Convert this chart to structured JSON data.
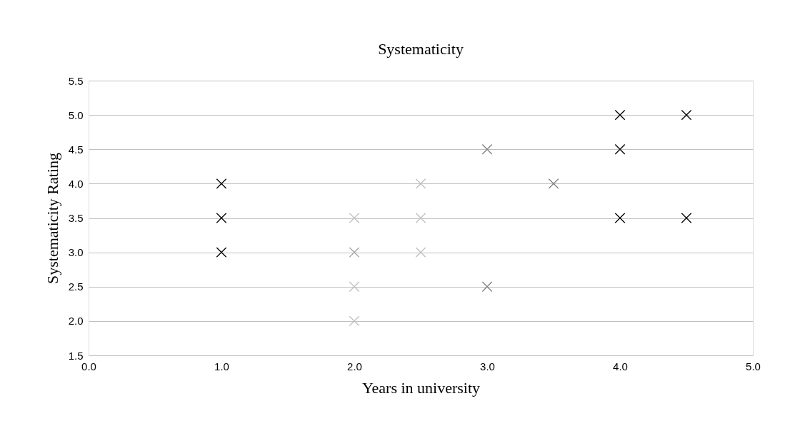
{
  "chart_data": {
    "type": "scatter",
    "title": "Systematicity",
    "xlabel": "Years in university",
    "ylabel": "Systematicity Rating",
    "x": [
      1.0,
      1.0,
      1.0,
      2.0,
      2.0,
      2.0,
      2.0,
      2.5,
      2.5,
      2.5,
      3.0,
      3.0,
      3.5,
      4.0,
      4.0,
      4.0,
      4.5,
      4.5
    ],
    "values": [
      4.0,
      3.5,
      3.0,
      3.5,
      3.0,
      2.5,
      2.0,
      4.0,
      3.5,
      3.0,
      4.5,
      2.5,
      4.0,
      5.0,
      4.5,
      3.5,
      5.0,
      3.5
    ],
    "colors": [
      "#000000",
      "#000000",
      "#000000",
      "#bfbfbf",
      "#a6a6a6",
      "#bfbfbf",
      "#bfbfbf",
      "#bfbfbf",
      "#bfbfbf",
      "#bfbfbf",
      "#7f7f7f",
      "#7f7f7f",
      "#7f7f7f",
      "#000000",
      "#000000",
      "#000000",
      "#000000",
      "#000000"
    ],
    "xlim": [
      0.0,
      5.0
    ],
    "xticks": [
      {
        "value": 0,
        "label": "0.0"
      },
      {
        "value": 1,
        "label": "1.0"
      },
      {
        "value": 2,
        "label": "2.0"
      },
      {
        "value": 3,
        "label": "3.0"
      },
      {
        "value": 4,
        "label": "4.0"
      },
      {
        "value": 5,
        "label": "5.0"
      }
    ],
    "ylim": [
      1.5,
      5.5
    ],
    "yticks": [
      1.5,
      {
        "value": 2,
        "label": "2.0"
      },
      {
        "value": 2.5,
        "label": "2.5"
      },
      {
        "value": 3,
        "label": "3.0"
      },
      3.5,
      {
        "value": 4,
        "label": "4.0"
      },
      4.5,
      {
        "value": 5,
        "label": "5.0"
      },
      5.5
    ],
    "grid": "y",
    "legend": false,
    "marker": "cross"
  }
}
